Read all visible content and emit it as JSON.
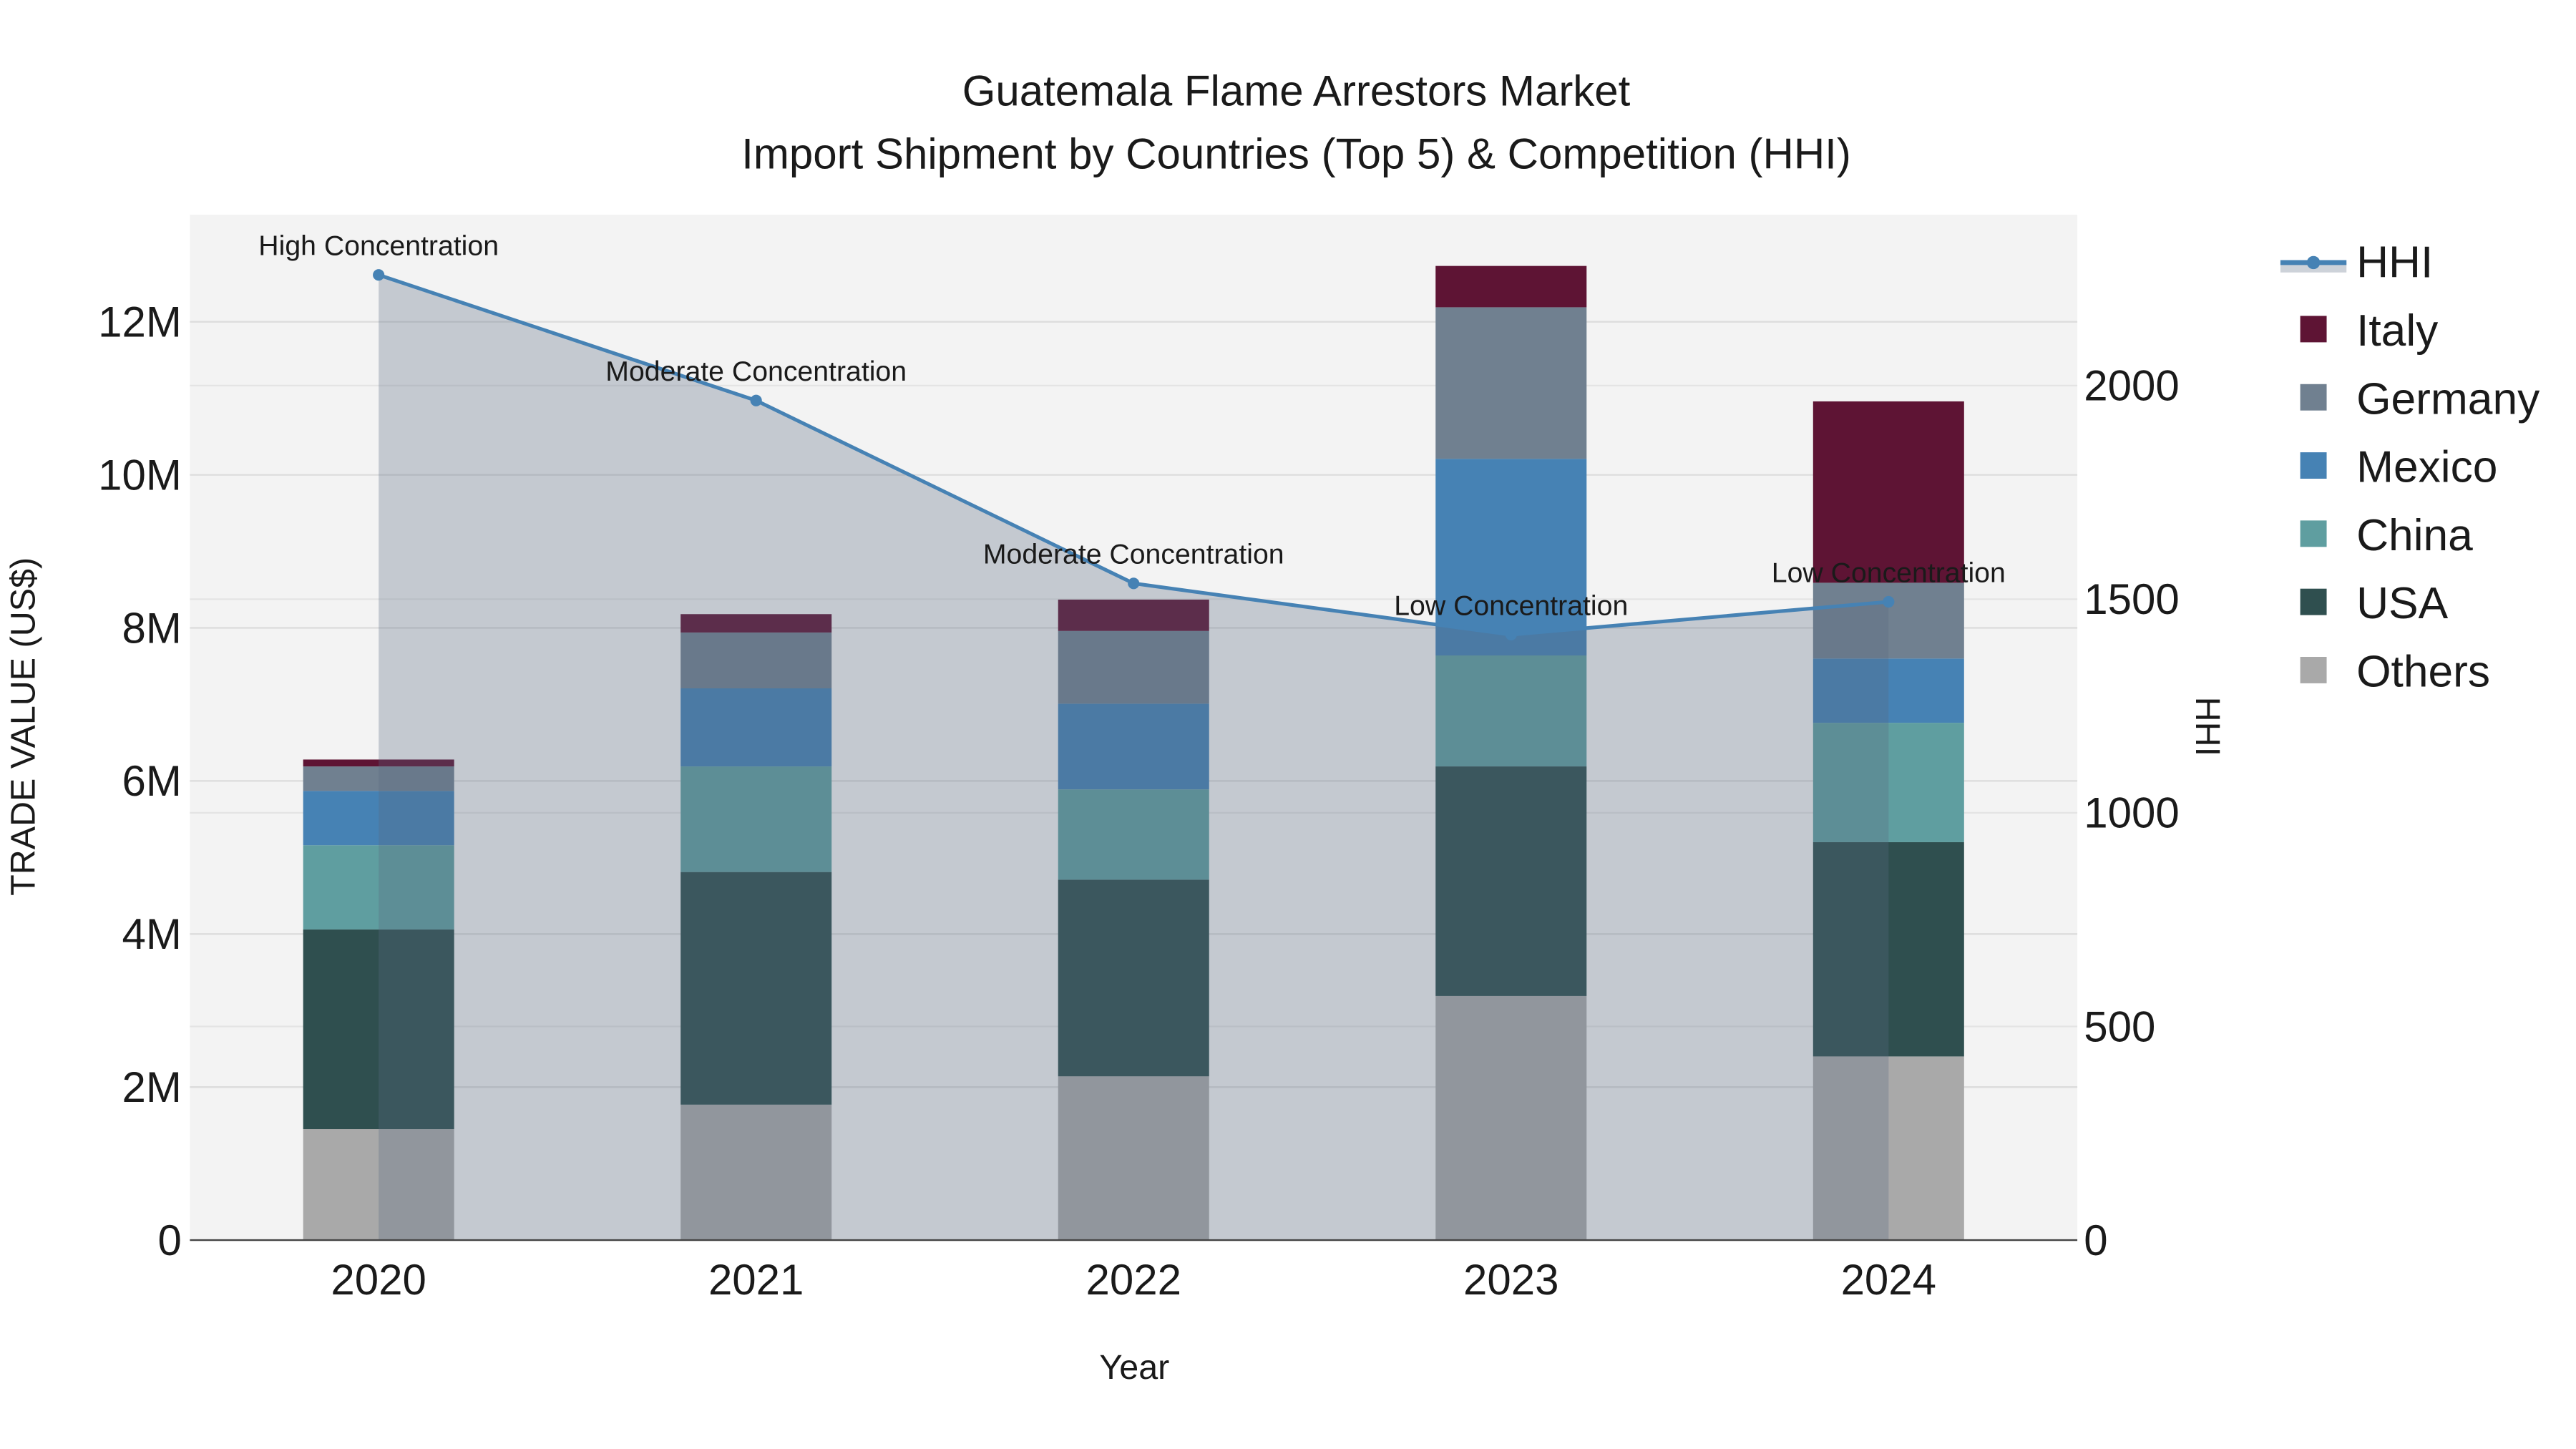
{
  "chart_data": {
    "type": "bar",
    "stacked": true,
    "title": "Guatemala Flame Arrestors Market",
    "subtitle": "Import Shipment by Countries (Top 5) & Competition (HHI)",
    "xlabel": "Year",
    "ylabel": "TRADE VALUE (US$)",
    "y2label": "HHI",
    "categories": [
      "2020",
      "2021",
      "2022",
      "2023",
      "2024"
    ],
    "ylim": [
      0,
      13400000
    ],
    "y2lim": [
      0,
      2400
    ],
    "yticks": [
      {
        "v": 0,
        "label": "0"
      },
      {
        "v": 2000000,
        "label": "2M"
      },
      {
        "v": 4000000,
        "label": "4M"
      },
      {
        "v": 6000000,
        "label": "6M"
      },
      {
        "v": 8000000,
        "label": "8M"
      },
      {
        "v": 10000000,
        "label": "10M"
      },
      {
        "v": 12000000,
        "label": "12M"
      }
    ],
    "y2ticks": [
      {
        "v": 0,
        "label": "0"
      },
      {
        "v": 500,
        "label": "500"
      },
      {
        "v": 1000,
        "label": "1000"
      },
      {
        "v": 1500,
        "label": "1500"
      },
      {
        "v": 2000,
        "label": "2000"
      }
    ],
    "series": [
      {
        "name": "Others",
        "color": "#a9a9a9",
        "values": [
          1450000,
          1770000,
          2140000,
          3190000,
          2400000
        ]
      },
      {
        "name": "USA",
        "color": "#2f4f4f",
        "values": [
          2610000,
          3040000,
          2570000,
          3000000,
          2800000
        ]
      },
      {
        "name": "China",
        "color": "#5f9ea0",
        "values": [
          1100000,
          1380000,
          1180000,
          1450000,
          1560000
        ]
      },
      {
        "name": "Mexico",
        "color": "#4682b4",
        "values": [
          710000,
          1020000,
          1120000,
          2570000,
          840000
        ]
      },
      {
        "name": "Germany",
        "color": "#708090",
        "values": [
          320000,
          730000,
          950000,
          1980000,
          990000
        ]
      },
      {
        "name": "Italy",
        "color": "#5e1434",
        "values": [
          90000,
          240000,
          410000,
          540000,
          2370000
        ]
      }
    ],
    "hhi": {
      "name": "HHI",
      "color": "#4682b4",
      "values": [
        2259,
        1965,
        1537,
        1417,
        1494
      ],
      "annotations": [
        "High Concentration",
        "Moderate Concentration",
        "Moderate Concentration",
        "Low Concentration",
        "Low Concentration"
      ]
    },
    "legend": [
      "HHI",
      "Italy",
      "Germany",
      "Mexico",
      "China",
      "USA",
      "Others"
    ],
    "legend_position": "right",
    "grid": true
  }
}
